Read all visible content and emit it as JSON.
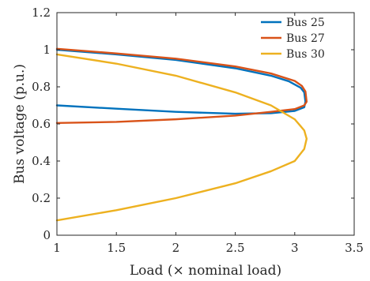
{
  "chart_data": {
    "type": "line",
    "title": "",
    "xlabel": "Load (× nominal load)",
    "ylabel": "Bus voltage (p.u.)",
    "xlim": [
      1,
      3.5
    ],
    "ylim": [
      0,
      1.2
    ],
    "xticks": [
      1,
      1.5,
      2,
      2.5,
      3,
      3.5
    ],
    "xtick_labels": [
      "1",
      "1.5",
      "2",
      "2.5",
      "3",
      "3.5"
    ],
    "yticks": [
      0,
      0.2,
      0.4,
      0.6,
      0.8,
      1,
      1.2
    ],
    "ytick_labels": [
      "0",
      "0.2",
      "0.4",
      "0.6",
      "0.8",
      "1",
      "1.2"
    ],
    "grid": false,
    "legend_position": "top-right",
    "series": [
      {
        "name": "Bus 25",
        "color": "#0072BD",
        "x": [
          1.0,
          1.5,
          2.0,
          2.5,
          2.8,
          2.95,
          3.05,
          3.08,
          3.09,
          3.08,
          3.0,
          2.8,
          2.5,
          2.0,
          1.5,
          1.0
        ],
        "y": [
          1.0,
          0.975,
          0.945,
          0.9,
          0.86,
          0.83,
          0.795,
          0.77,
          0.72,
          0.69,
          0.67,
          0.658,
          0.655,
          0.665,
          0.682,
          0.7
        ]
      },
      {
        "name": "Bus 27",
        "color": "#D95319",
        "x": [
          1.0,
          1.5,
          2.0,
          2.5,
          2.8,
          3.0,
          3.06,
          3.09,
          3.1,
          3.08,
          3.0,
          2.8,
          2.5,
          2.0,
          1.5,
          1.0
        ],
        "y": [
          1.005,
          0.98,
          0.952,
          0.91,
          0.872,
          0.832,
          0.805,
          0.775,
          0.72,
          0.7,
          0.68,
          0.665,
          0.645,
          0.625,
          0.611,
          0.605
        ]
      },
      {
        "name": "Bus 30",
        "color": "#EDB120",
        "x": [
          1.0,
          1.5,
          2.0,
          2.5,
          2.8,
          3.0,
          3.08,
          3.1,
          3.08,
          3.0,
          2.8,
          2.5,
          2.0,
          1.5,
          1.0
        ],
        "y": [
          0.975,
          0.925,
          0.86,
          0.77,
          0.7,
          0.625,
          0.565,
          0.52,
          0.465,
          0.4,
          0.345,
          0.28,
          0.2,
          0.135,
          0.08
        ]
      }
    ]
  }
}
